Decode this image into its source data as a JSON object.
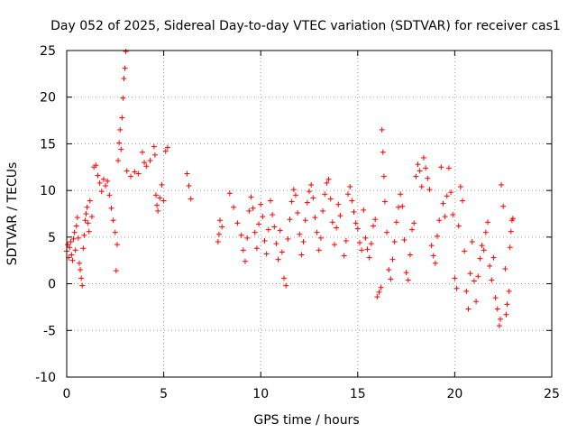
{
  "chart_data": {
    "type": "scatter",
    "title": "Day 052 of 2025, Sidereal Day-to-day VTEC variation (SDTVAR) for receiver cas1",
    "xlabel": "GPS time / hours",
    "ylabel": "SDTVAR / TECUs",
    "xlim": [
      0,
      25
    ],
    "ylim": [
      -10,
      25
    ],
    "xticks": [
      0,
      5,
      10,
      15,
      20,
      25
    ],
    "yticks": [
      -10,
      -5,
      0,
      5,
      10,
      15,
      20,
      25
    ],
    "grid": true,
    "marker": "+",
    "color": "#ff0000",
    "series": [
      {
        "name": "cas1 SDTVAR",
        "points": [
          [
            0.0,
            3.5
          ],
          [
            0.05,
            4.2
          ],
          [
            0.1,
            2.8
          ],
          [
            0.15,
            3.9
          ],
          [
            0.2,
            4.5
          ],
          [
            0.25,
            3.1
          ],
          [
            0.3,
            2.5
          ],
          [
            0.35,
            4.8
          ],
          [
            0.4,
            5.5
          ],
          [
            0.45,
            3.6
          ],
          [
            0.5,
            6.2
          ],
          [
            0.55,
            7.1
          ],
          [
            0.6,
            4.9
          ],
          [
            0.65,
            2.2
          ],
          [
            0.7,
            1.5
          ],
          [
            0.75,
            0.6
          ],
          [
            0.8,
            -0.2
          ],
          [
            0.85,
            3.8
          ],
          [
            0.9,
            5.2
          ],
          [
            0.95,
            6.8
          ],
          [
            1.0,
            7.5
          ],
          [
            1.05,
            8.2
          ],
          [
            1.1,
            6.5
          ],
          [
            1.15,
            5.6
          ],
          [
            1.2,
            8.9
          ],
          [
            1.3,
            7.2
          ],
          [
            1.4,
            12.5
          ],
          [
            1.5,
            12.7
          ],
          [
            1.6,
            11.6
          ],
          [
            1.7,
            10.8
          ],
          [
            1.8,
            9.9
          ],
          [
            1.9,
            11.2
          ],
          [
            2.0,
            10.5
          ],
          [
            2.1,
            11.0
          ],
          [
            2.2,
            9.5
          ],
          [
            2.3,
            8.1
          ],
          [
            2.4,
            6.8
          ],
          [
            2.5,
            5.5
          ],
          [
            2.55,
            1.4
          ],
          [
            2.6,
            4.2
          ],
          [
            2.65,
            13.2
          ],
          [
            2.7,
            15.1
          ],
          [
            2.75,
            16.5
          ],
          [
            2.8,
            14.4
          ],
          [
            2.85,
            17.8
          ],
          [
            2.9,
            19.9
          ],
          [
            2.95,
            22.0
          ],
          [
            3.0,
            23.1
          ],
          [
            3.05,
            24.9
          ],
          [
            3.1,
            12.1
          ],
          [
            3.3,
            11.5
          ],
          [
            3.5,
            12.0
          ],
          [
            3.7,
            11.8
          ],
          [
            3.9,
            14.1
          ],
          [
            4.0,
            13.0
          ],
          [
            4.1,
            12.6
          ],
          [
            4.3,
            13.2
          ],
          [
            4.5,
            14.7
          ],
          [
            4.55,
            13.8
          ],
          [
            4.6,
            9.5
          ],
          [
            4.65,
            8.4
          ],
          [
            4.7,
            7.8
          ],
          [
            4.8,
            9.2
          ],
          [
            4.9,
            10.6
          ],
          [
            5.0,
            8.9
          ],
          [
            5.1,
            14.2
          ],
          [
            5.2,
            14.6
          ],
          [
            6.2,
            11.8
          ],
          [
            6.3,
            10.5
          ],
          [
            6.4,
            9.1
          ],
          [
            7.8,
            4.5
          ],
          [
            7.85,
            5.3
          ],
          [
            7.9,
            6.8
          ],
          [
            8.0,
            6.1
          ],
          [
            8.4,
            9.7
          ],
          [
            8.6,
            8.2
          ],
          [
            8.8,
            6.5
          ],
          [
            9.0,
            5.2
          ],
          [
            9.1,
            3.6
          ],
          [
            9.2,
            2.4
          ],
          [
            9.3,
            4.9
          ],
          [
            9.4,
            7.8
          ],
          [
            9.5,
            9.3
          ],
          [
            9.6,
            8.1
          ],
          [
            9.7,
            5.5
          ],
          [
            9.8,
            3.8
          ],
          [
            9.9,
            6.4
          ],
          [
            10.0,
            8.5
          ],
          [
            10.1,
            7.2
          ],
          [
            10.2,
            4.6
          ],
          [
            10.3,
            3.2
          ],
          [
            10.4,
            5.8
          ],
          [
            10.5,
            8.9
          ],
          [
            10.6,
            7.4
          ],
          [
            10.7,
            6.1
          ],
          [
            10.8,
            4.3
          ],
          [
            10.9,
            2.6
          ],
          [
            11.0,
            5.7
          ],
          [
            11.1,
            3.4
          ],
          [
            11.2,
            0.6
          ],
          [
            11.3,
            -0.2
          ],
          [
            11.4,
            4.8
          ],
          [
            11.5,
            6.9
          ],
          [
            11.6,
            8.8
          ],
          [
            11.7,
            10.1
          ],
          [
            11.8,
            9.5
          ],
          [
            11.9,
            7.6
          ],
          [
            12.0,
            5.3
          ],
          [
            12.1,
            3.1
          ],
          [
            12.2,
            4.5
          ],
          [
            12.3,
            6.8
          ],
          [
            12.4,
            8.7
          ],
          [
            12.5,
            9.9
          ],
          [
            12.6,
            10.6
          ],
          [
            12.7,
            9.2
          ],
          [
            12.8,
            7.1
          ],
          [
            12.9,
            5.5
          ],
          [
            13.0,
            3.6
          ],
          [
            13.1,
            4.9
          ],
          [
            13.2,
            7.8
          ],
          [
            13.3,
            9.6
          ],
          [
            13.4,
            10.8
          ],
          [
            13.5,
            11.2
          ],
          [
            13.6,
            9.1
          ],
          [
            13.7,
            6.6
          ],
          [
            13.8,
            4.2
          ],
          [
            13.9,
            6.0
          ],
          [
            14.0,
            8.5
          ],
          [
            14.1,
            7.3
          ],
          [
            14.3,
            3.0
          ],
          [
            14.4,
            4.6
          ],
          [
            14.5,
            9.6
          ],
          [
            14.6,
            10.4
          ],
          [
            14.7,
            8.9
          ],
          [
            14.8,
            7.7
          ],
          [
            14.9,
            6.5
          ],
          [
            15.0,
            5.9
          ],
          [
            15.1,
            4.4
          ],
          [
            15.2,
            3.6
          ],
          [
            15.3,
            7.9
          ],
          [
            15.4,
            4.9
          ],
          [
            15.5,
            3.7
          ],
          [
            15.6,
            2.8
          ],
          [
            15.7,
            4.3
          ],
          [
            15.8,
            6.2
          ],
          [
            15.9,
            6.9
          ],
          [
            16.0,
            -1.4
          ],
          [
            16.1,
            -0.9
          ],
          [
            16.2,
            -0.4
          ],
          [
            16.25,
            16.5
          ],
          [
            16.3,
            14.1
          ],
          [
            16.35,
            11.5
          ],
          [
            16.4,
            8.8
          ],
          [
            16.5,
            5.5
          ],
          [
            16.6,
            1.5
          ],
          [
            16.7,
            0.5
          ],
          [
            16.8,
            2.6
          ],
          [
            16.9,
            4.5
          ],
          [
            17.0,
            6.6
          ],
          [
            17.1,
            8.2
          ],
          [
            17.2,
            9.6
          ],
          [
            17.3,
            8.3
          ],
          [
            17.4,
            4.7
          ],
          [
            17.5,
            1.2
          ],
          [
            17.6,
            0.4
          ],
          [
            17.7,
            3.1
          ],
          [
            17.8,
            5.8
          ],
          [
            17.9,
            6.5
          ],
          [
            18.0,
            11.5
          ],
          [
            18.1,
            12.8
          ],
          [
            18.2,
            12.1
          ],
          [
            18.3,
            10.4
          ],
          [
            18.4,
            13.5
          ],
          [
            18.5,
            12.4
          ],
          [
            18.6,
            11.3
          ],
          [
            18.7,
            10.1
          ],
          [
            18.8,
            4.1
          ],
          [
            18.9,
            3.0
          ],
          [
            19.0,
            2.2
          ],
          [
            19.1,
            5.1
          ],
          [
            19.2,
            6.8
          ],
          [
            19.3,
            12.5
          ],
          [
            19.4,
            8.6
          ],
          [
            19.5,
            7.2
          ],
          [
            19.6,
            9.4
          ],
          [
            19.7,
            12.4
          ],
          [
            19.8,
            9.8
          ],
          [
            19.9,
            7.4
          ],
          [
            20.0,
            0.6
          ],
          [
            20.1,
            -0.5
          ],
          [
            20.2,
            6.2
          ],
          [
            20.3,
            10.4
          ],
          [
            20.4,
            8.9
          ],
          [
            20.5,
            3.5
          ],
          [
            20.6,
            -0.8
          ],
          [
            20.7,
            -2.7
          ],
          [
            20.8,
            1.1
          ],
          [
            20.9,
            4.5
          ],
          [
            21.0,
            0.3
          ],
          [
            21.1,
            -1.9
          ],
          [
            21.2,
            0.8
          ],
          [
            21.3,
            2.7
          ],
          [
            21.4,
            4.1
          ],
          [
            21.5,
            3.6
          ],
          [
            21.6,
            5.5
          ],
          [
            21.7,
            6.6
          ],
          [
            21.8,
            1.9
          ],
          [
            21.9,
            0.4
          ],
          [
            22.0,
            2.8
          ],
          [
            22.1,
            -1.5
          ],
          [
            22.2,
            -2.7
          ],
          [
            22.3,
            -4.5
          ],
          [
            22.35,
            -3.8
          ],
          [
            22.4,
            10.6
          ],
          [
            22.5,
            8.3
          ],
          [
            22.6,
            1.6
          ],
          [
            22.65,
            -3.3
          ],
          [
            22.7,
            -2.2
          ],
          [
            22.8,
            -0.8
          ],
          [
            22.85,
            3.9
          ],
          [
            22.9,
            5.6
          ],
          [
            22.95,
            6.8
          ],
          [
            23.0,
            7.0
          ]
        ]
      }
    ]
  }
}
